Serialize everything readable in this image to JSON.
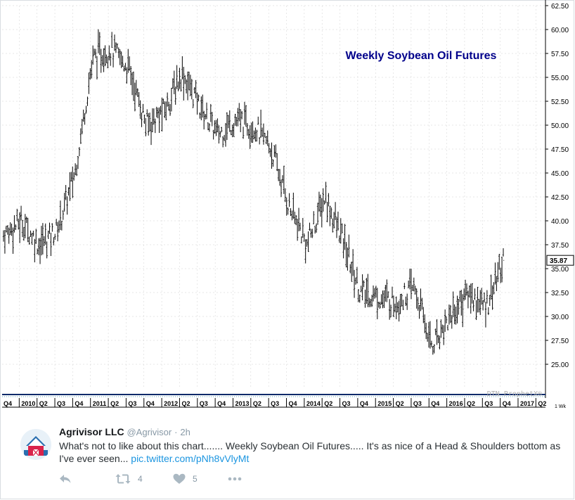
{
  "chart_data": {
    "type": "line",
    "subtype": "weekly-ohlc-bars",
    "title": "Weekly Soybean Oil Futures",
    "watermark": "DTN ProphetX®",
    "scale_label": "1 Wk",
    "last_price_label": "35.87",
    "xlabel": "",
    "ylabel": "",
    "ylim": [
      22.5,
      62.5
    ],
    "y_ticks": [
      "25.00",
      "27.50",
      "30.00",
      "32.50",
      "35.00",
      "37.50",
      "40.00",
      "42.50",
      "45.00",
      "47.50",
      "50.00",
      "52.50",
      "55.00",
      "57.50",
      "60.00",
      "62.50"
    ],
    "x_tick_labels": [
      "Q4",
      "2010",
      "Q2",
      "Q3",
      "Q4",
      "2011",
      "Q2",
      "Q3",
      "Q4",
      "2012",
      "Q2",
      "Q3",
      "Q4",
      "2013",
      "Q2",
      "Q3",
      "Q4",
      "2014",
      "Q2",
      "Q3",
      "Q4",
      "2015",
      "Q2",
      "Q3",
      "Q4",
      "2016",
      "Q2",
      "Q3",
      "Q4",
      "2017",
      "Q2"
    ],
    "x_range": [
      "2009-Q4",
      "2017-Q2"
    ],
    "grid": true,
    "colors": {
      "bars": "#000000",
      "title": "#00008b",
      "grid": "#d0d0d0",
      "last_price_bg": "#ffffff"
    },
    "x": [
      "2009-10",
      "2010-01",
      "2010-04",
      "2010-07",
      "2010-10",
      "2011-01",
      "2011-04",
      "2011-07",
      "2011-10",
      "2012-01",
      "2012-04",
      "2012-07",
      "2012-10",
      "2013-01",
      "2013-04",
      "2013-07",
      "2013-10",
      "2014-01",
      "2014-04",
      "2014-07",
      "2014-10",
      "2015-01",
      "2015-04",
      "2015-07",
      "2015-10",
      "2016-01",
      "2016-04",
      "2016-07",
      "2016-10"
    ],
    "series": [
      {
        "values": [
          38.5,
          40.0,
          37.5,
          39.0,
          45.0,
          57.0,
          58.0,
          56.0,
          50.0,
          51.5,
          55.5,
          52.0,
          49.0,
          50.5,
          50.0,
          47.5,
          41.5,
          37.5,
          42.5,
          38.0,
          32.5,
          32.0,
          31.5,
          33.0,
          27.0,
          30.0,
          32.5,
          31.0,
          35.87
        ]
      }
    ]
  },
  "tweet": {
    "name": "Agrivisor LLC",
    "handle": "@Agrivisor",
    "sep": "·",
    "time": "2h",
    "text": "What's not to like about this chart....... Weekly Soybean Oil Futures..... It's as nice of a Head & Shoulders bottom as I've ever seen...",
    "link": "pic.twitter.com/pNh8vVlyMt",
    "retweets": "4",
    "likes": "5"
  }
}
